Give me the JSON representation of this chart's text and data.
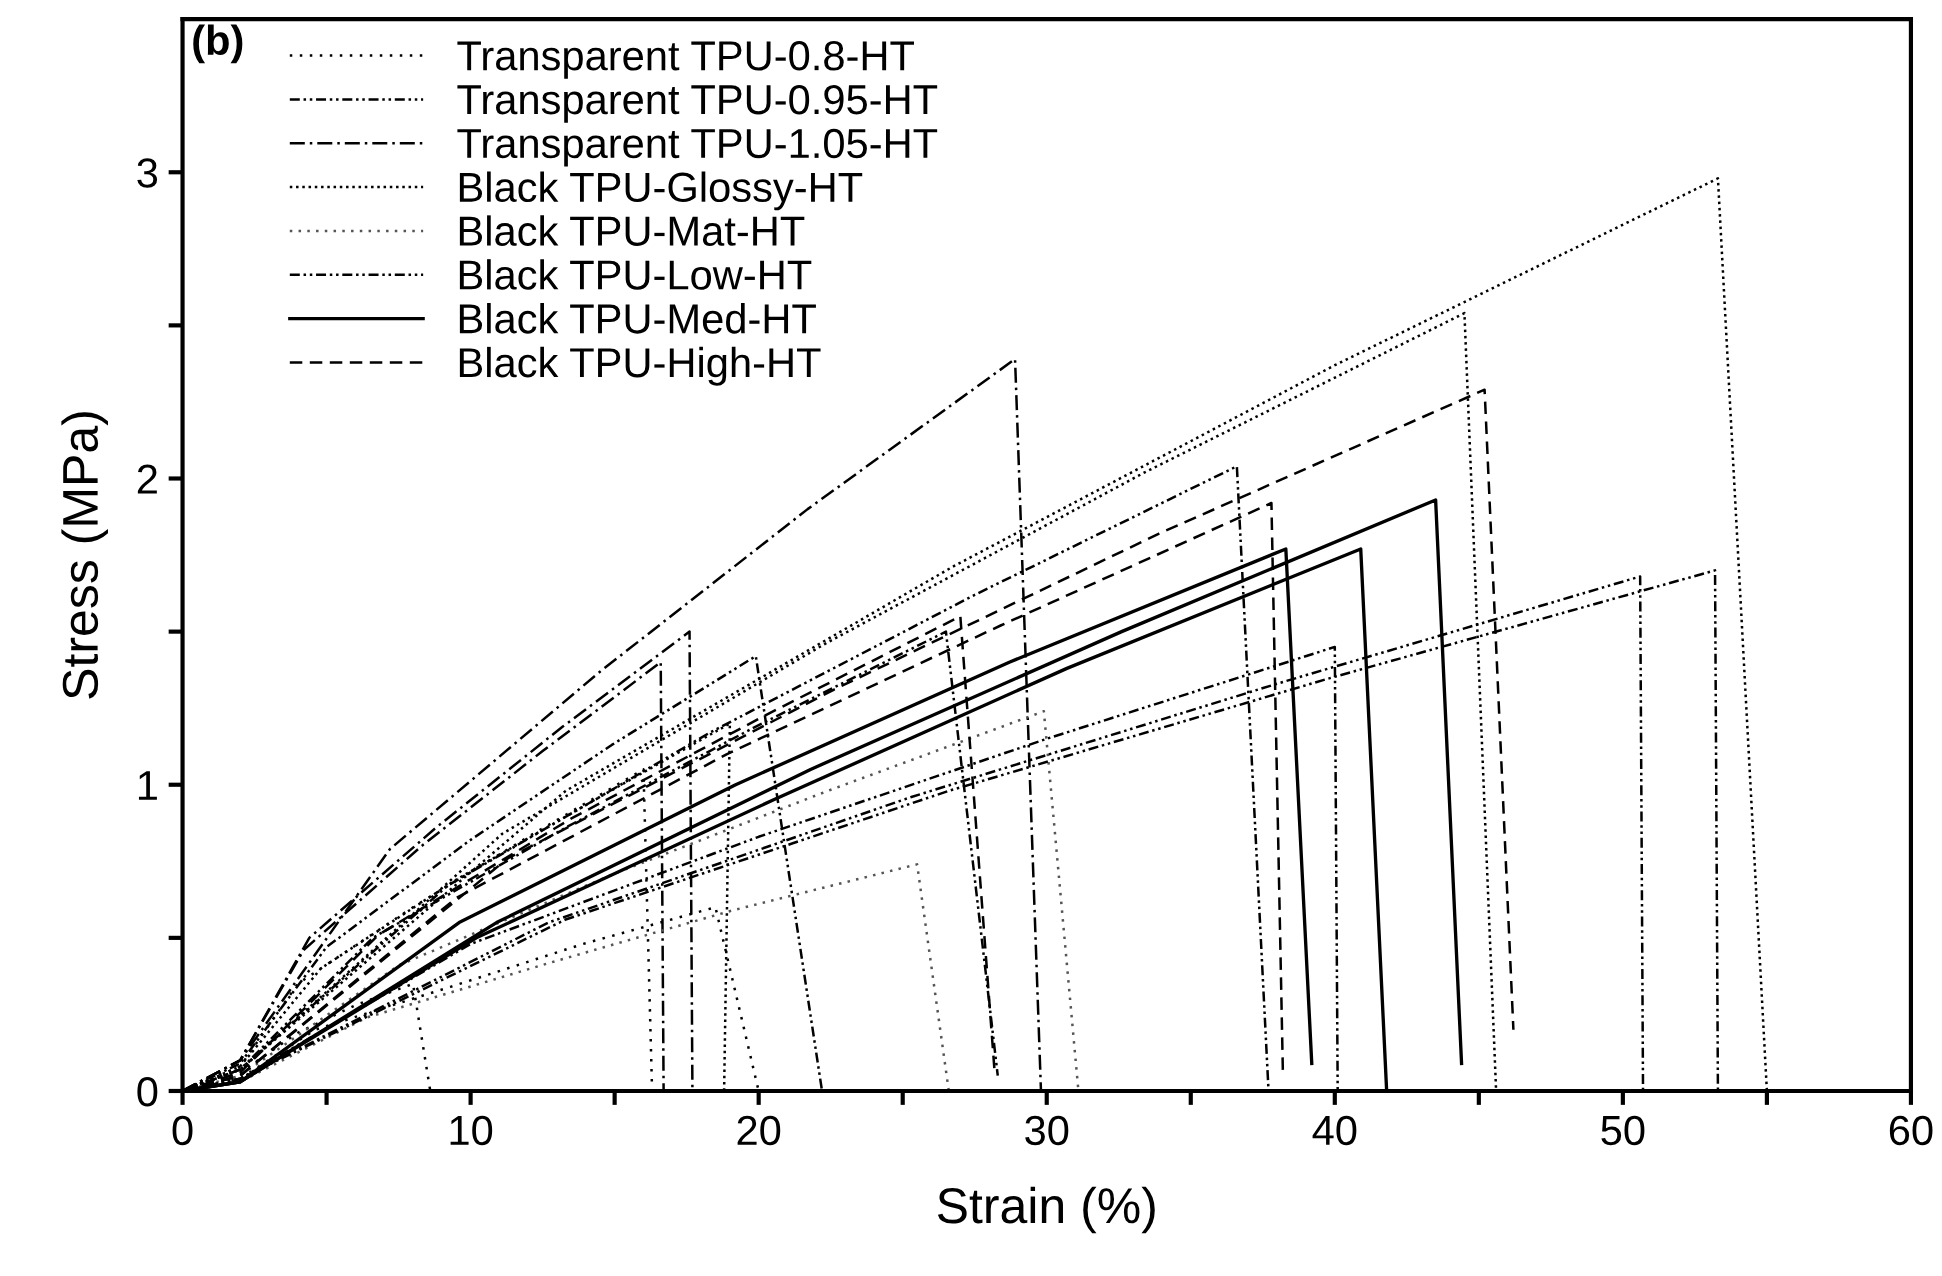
{
  "chart_data": {
    "type": "line",
    "xlabel": "Strain (%)",
    "ylabel": "Stress (MPa)",
    "annotations": [
      "(b)"
    ],
    "xlim": [
      0,
      60
    ],
    "ylim": [
      0,
      3.5
    ],
    "xticks": [
      0,
      {
        "value": 5,
        "label": null
      },
      10,
      {
        "value": 15,
        "label": null
      },
      20,
      {
        "value": 25,
        "label": null
      },
      30,
      {
        "value": 35,
        "label": null
      },
      40,
      {
        "value": 45,
        "label": null
      },
      50,
      {
        "value": 55,
        "label": null
      },
      60
    ],
    "yticks": [
      0,
      {
        "value": 0.5,
        "label": null
      },
      1,
      {
        "value": 1.5,
        "label": null
      },
      2,
      {
        "value": 2.5,
        "label": null
      },
      3
    ],
    "grid": false,
    "legend": "top left",
    "marker": "none",
    "series": [
      {
        "name": "Transparent TPU-0.8-HT",
        "color": "#000000",
        "line_style": "dotted",
        "x": [
          0,
          2,
          4,
          6,
          8,
          8.6
        ],
        "values": [
          0,
          0.06,
          0.19,
          0.28,
          0.35,
          0
        ]
      },
      {
        "color": "#000000",
        "line_style": "dotted",
        "x": [
          0,
          2,
          4,
          8,
          12,
          16,
          16.3
        ],
        "values": [
          0,
          0.08,
          0.35,
          0.6,
          0.83,
          1.05,
          0
        ]
      },
      {
        "color": "#000000",
        "line_style": "dotted",
        "x": [
          0,
          2,
          4.6,
          9.3,
          13.9,
          18.5,
          20
        ],
        "values": [
          0,
          0.04,
          0.2,
          0.34,
          0.48,
          0.6,
          0
        ]
      },
      {
        "name": "Transparent TPU-0.95-HT",
        "color": "#000000",
        "line_style": "dashdotdot",
        "x": [
          0,
          2,
          9.2,
          18.3,
          27.5,
          36.6,
          37.7
        ],
        "values": [
          0,
          0.07,
          0.67,
          1.17,
          1.62,
          2.04,
          0
        ]
      },
      {
        "color": "#000000",
        "line_style": "dashdotdot",
        "x": [
          0,
          2,
          5,
          10,
          14.9,
          19.9,
          22.2
        ],
        "values": [
          0,
          0.09,
          0.47,
          0.82,
          1.13,
          1.42,
          0
        ]
      },
      {
        "color": "#000000",
        "line_style": "dashdotdot",
        "x": [
          0,
          2,
          6.6,
          13.3,
          19.9,
          26.5,
          28.3
        ],
        "values": [
          0,
          0.07,
          0.5,
          0.86,
          1.19,
          1.5,
          0.05
        ]
      },
      {
        "name": "Transparent TPU-1.05-HT",
        "color": "#000000",
        "line_style": "dashdot",
        "x": [
          0,
          2,
          7.2,
          14.5,
          21.7,
          28.9,
          29.8
        ],
        "values": [
          0,
          0.1,
          0.79,
          1.37,
          1.9,
          2.39,
          0
        ]
      },
      {
        "color": "#000000",
        "line_style": "dashdot",
        "x": [
          0,
          2,
          4.4,
          8.8,
          13.2,
          17.6,
          17.7
        ],
        "values": [
          0,
          0.1,
          0.5,
          0.86,
          1.19,
          1.5,
          0
        ]
      },
      {
        "color": "#000000",
        "line_style": "dashdot",
        "x": [
          0,
          2,
          4.2,
          8.3,
          12.5,
          16.6,
          16.7
        ],
        "values": [
          0,
          0.1,
          0.46,
          0.8,
          1.11,
          1.4,
          0
        ]
      },
      {
        "name": "Black TPU-Glossy-HT",
        "color": "#000000",
        "line_style": "dotted_dense",
        "x": [
          0,
          2,
          13.3,
          26.7,
          40,
          53.3,
          55
        ],
        "values": [
          0,
          0.07,
          0.98,
          1.71,
          2.37,
          2.98,
          0
        ]
      },
      {
        "color": "#000000",
        "line_style": "dotted_dense",
        "x": [
          0,
          2,
          11.1,
          22.3,
          33.4,
          44.5,
          45.6
        ],
        "values": [
          0,
          0.07,
          0.84,
          1.46,
          2.02,
          2.54,
          0
        ]
      },
      {
        "color": "#000000",
        "line_style": "dotted_dense",
        "x": [
          0,
          2,
          4.8,
          9.5,
          14.3,
          19,
          18.8
        ],
        "values": [
          0,
          0.08,
          0.4,
          0.69,
          0.95,
          1.2,
          0
        ]
      },
      {
        "name": "Black TPU-Mat-HT",
        "color": "#555555",
        "line_style": "dotted_sparse",
        "x": [
          0,
          2,
          7.5,
          15,
          22.4,
          29.9,
          31.1
        ],
        "values": [
          0,
          0.05,
          0.41,
          0.71,
          0.98,
          1.24,
          0
        ]
      },
      {
        "color": "#555555",
        "line_style": "dotted_sparse",
        "x": [
          0,
          2,
          6.4,
          12.8,
          19.1,
          25.5,
          26.6
        ],
        "values": [
          0,
          0.03,
          0.24,
          0.42,
          0.59,
          0.74,
          0
        ]
      },
      {
        "name": "Black TPU-Low-HT",
        "color": "#000000",
        "line_style": "dashdotdot",
        "x": [
          0,
          2,
          13.3,
          26.6,
          39.9,
          53.2,
          53.3
        ],
        "values": [
          0,
          0.04,
          0.56,
          0.98,
          1.35,
          1.7,
          0
        ]
      },
      {
        "color": "#000000",
        "line_style": "dashdotdot",
        "x": [
          0,
          2,
          12.7,
          25.3,
          38,
          50.6,
          50.7
        ],
        "values": [
          0,
          0.04,
          0.55,
          0.96,
          1.33,
          1.68,
          0
        ]
      },
      {
        "color": "#000000",
        "line_style": "dashdotdot",
        "x": [
          0,
          2,
          10,
          20,
          30,
          40,
          40.1
        ],
        "values": [
          0,
          0.04,
          0.48,
          0.83,
          1.15,
          1.45,
          0
        ]
      },
      {
        "name": "Black TPU-Med-HT",
        "color": "#000000",
        "line_style": "solid",
        "x": [
          0,
          2,
          9.6,
          19.2,
          28.7,
          38.3,
          39.2
        ],
        "values": [
          0,
          0.03,
          0.55,
          1.0,
          1.4,
          1.77,
          0.09
        ]
      },
      {
        "color": "#000000",
        "line_style": "solid",
        "x": [
          0,
          2,
          10.2,
          20.5,
          30.7,
          40.9,
          41.8
        ],
        "values": [
          0,
          0.03,
          0.5,
          0.95,
          1.38,
          1.77,
          0
        ]
      },
      {
        "color": "#000000",
        "line_style": "solid",
        "x": [
          0,
          2,
          10.9,
          21.8,
          32.6,
          43.5,
          44.4
        ],
        "values": [
          0,
          0.03,
          0.55,
          1.05,
          1.5,
          1.93,
          0.09
        ]
      },
      {
        "name": "Black TPU-High-HT",
        "color": "#000000",
        "line_style": "dashed",
        "x": [
          0,
          2,
          11.3,
          22.6,
          33.9,
          45.2,
          46.2
        ],
        "values": [
          0,
          0.05,
          0.76,
          1.31,
          1.82,
          2.29,
          0.2
        ]
      },
      {
        "color": "#000000",
        "line_style": "dashed",
        "x": [
          0,
          2,
          9.5,
          18.9,
          28.4,
          37.8,
          38.2
        ],
        "values": [
          0,
          0.05,
          0.63,
          1.1,
          1.52,
          1.92,
          0.05
        ]
      },
      {
        "color": "#000000",
        "line_style": "dashed",
        "x": [
          0,
          2,
          6.8,
          13.5,
          20.3,
          27,
          28.2
        ],
        "values": [
          0,
          0.06,
          0.51,
          0.89,
          1.23,
          1.55,
          0.05
        ]
      }
    ]
  }
}
